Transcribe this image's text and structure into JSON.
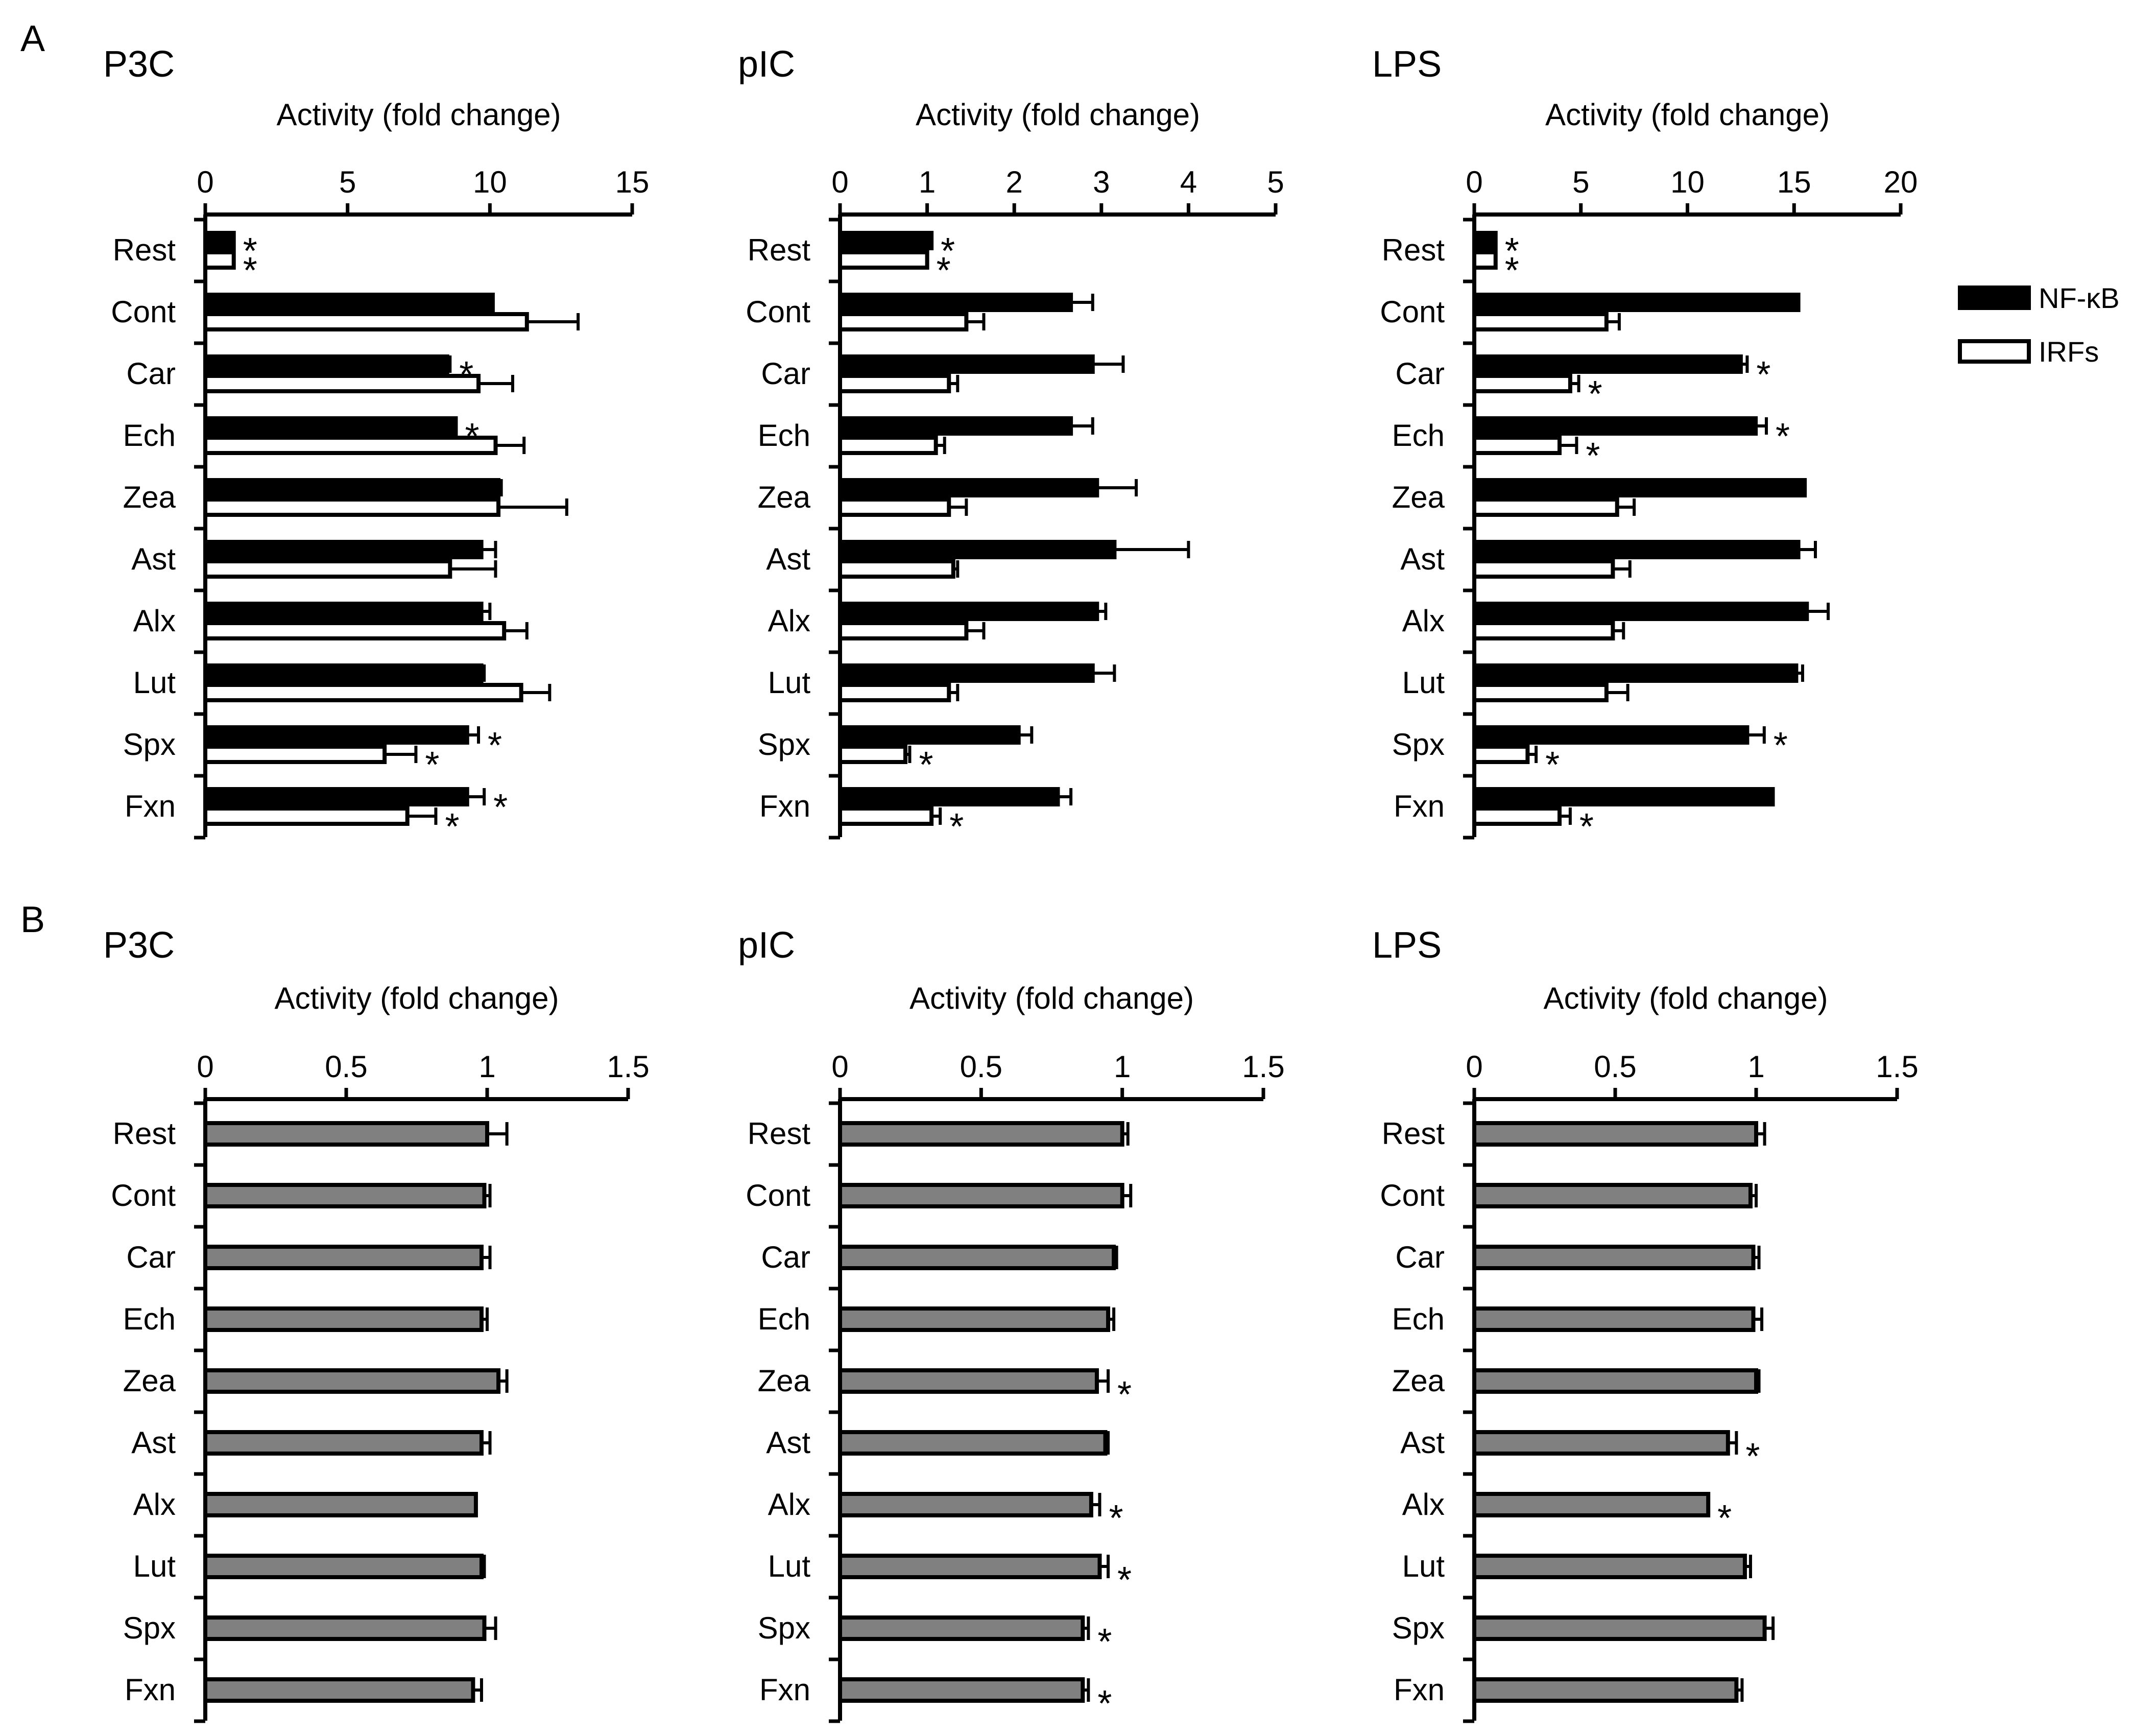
{
  "figure": {
    "panel_labels": [
      "A",
      "B"
    ]
  },
  "legend": [
    {
      "name": "NF-κB",
      "fill": "#000000"
    },
    {
      "name": "IRFs",
      "fill": "#ffffff"
    }
  ],
  "colors": {
    "nfkb": "#000000",
    "irfs": "#ffffff",
    "row_b": "#808080",
    "axis": "#000000"
  },
  "chart_data": [
    {
      "type": "bar",
      "panel": "A",
      "title": "P3C",
      "xlabel": "Activity (fold change)",
      "xlim": [
        0,
        15
      ],
      "xticks": [
        "0",
        "5",
        "10",
        "15"
      ],
      "orientation": "horizontal",
      "categories": [
        "Rest",
        "Cont",
        "Car",
        "Ech",
        "Zea",
        "Ast",
        "Alx",
        "Lut",
        "Spx",
        "Fxn"
      ],
      "series": [
        {
          "name": "NF-κB",
          "values": [
            1.0,
            10.1,
            8.5,
            8.8,
            10.3,
            9.7,
            9.7,
            9.7,
            9.2,
            9.2
          ],
          "errors": [
            0,
            0,
            0.1,
            0,
            0.1,
            0.5,
            0.3,
            0.1,
            0.4,
            0.6
          ],
          "sig": [
            true,
            false,
            true,
            true,
            false,
            false,
            false,
            false,
            true,
            true
          ]
        },
        {
          "name": "IRFs",
          "values": [
            1.0,
            11.3,
            9.6,
            10.2,
            10.3,
            8.6,
            10.5,
            11.1,
            6.3,
            7.1
          ],
          "errors": [
            0,
            1.8,
            1.2,
            1.0,
            2.4,
            1.6,
            0.8,
            1.0,
            1.1,
            1.0
          ],
          "sig": [
            true,
            false,
            false,
            false,
            false,
            false,
            false,
            false,
            true,
            true
          ]
        }
      ]
    },
    {
      "type": "bar",
      "panel": "A",
      "title": "pIC",
      "xlabel": "Activity (fold change)",
      "xlim": [
        0,
        5
      ],
      "xticks": [
        "0",
        "1",
        "2",
        "3",
        "4",
        "5"
      ],
      "orientation": "horizontal",
      "categories": [
        "Rest",
        "Cont",
        "Car",
        "Ech",
        "Zea",
        "Ast",
        "Alx",
        "Lut",
        "Spx",
        "Fxn"
      ],
      "series": [
        {
          "name": "NF-κB",
          "values": [
            1.05,
            2.65,
            2.9,
            2.65,
            2.95,
            3.15,
            2.95,
            2.9,
            2.05,
            2.5
          ],
          "errors": [
            0,
            0.25,
            0.35,
            0.25,
            0.45,
            0.85,
            0.1,
            0.25,
            0.15,
            0.15
          ],
          "sig": [
            true,
            false,
            false,
            false,
            false,
            false,
            false,
            false,
            false,
            false
          ]
        },
        {
          "name": "IRFs",
          "values": [
            1.0,
            1.45,
            1.25,
            1.1,
            1.25,
            1.3,
            1.45,
            1.25,
            0.75,
            1.05
          ],
          "errors": [
            0,
            0.2,
            0.1,
            0.1,
            0.2,
            0.05,
            0.2,
            0.1,
            0.05,
            0.1
          ],
          "sig": [
            true,
            false,
            false,
            false,
            false,
            false,
            false,
            false,
            true,
            true
          ]
        }
      ]
    },
    {
      "type": "bar",
      "panel": "A",
      "title": "LPS",
      "xlabel": "Activity (fold change)",
      "xlim": [
        0,
        20
      ],
      "xticks": [
        "0",
        "5",
        "10",
        "15",
        "20"
      ],
      "orientation": "horizontal",
      "categories": [
        "Rest",
        "Cont",
        "Car",
        "Ech",
        "Zea",
        "Ast",
        "Alx",
        "Lut",
        "Spx",
        "Fxn"
      ],
      "series": [
        {
          "name": "NF-κB",
          "values": [
            1.0,
            15.2,
            12.5,
            13.2,
            15.5,
            15.2,
            15.6,
            15.1,
            12.8,
            14.0
          ],
          "errors": [
            0,
            0,
            0.3,
            0.5,
            0,
            0.8,
            1.0,
            0.3,
            0.8,
            0
          ],
          "sig": [
            true,
            false,
            true,
            true,
            false,
            false,
            false,
            false,
            true,
            false
          ]
        },
        {
          "name": "IRFs",
          "values": [
            1.0,
            6.2,
            4.5,
            4.0,
            6.7,
            6.5,
            6.5,
            6.2,
            2.5,
            4.0
          ],
          "errors": [
            0,
            0.6,
            0.4,
            0.8,
            0.8,
            0.8,
            0.5,
            1.0,
            0.4,
            0.5
          ],
          "sig": [
            true,
            false,
            true,
            true,
            false,
            false,
            false,
            false,
            true,
            true
          ]
        }
      ]
    },
    {
      "type": "bar",
      "panel": "B",
      "title": "P3C",
      "xlabel": "Activity (fold change)",
      "xlim": [
        0,
        1.5
      ],
      "xticks": [
        "0",
        "0.5",
        "1",
        "1.5"
      ],
      "orientation": "horizontal",
      "categories": [
        "Rest",
        "Cont",
        "Car",
        "Ech",
        "Zea",
        "Ast",
        "Alx",
        "Lut",
        "Spx",
        "Fxn"
      ],
      "series": [
        {
          "name": "",
          "values": [
            1.0,
            0.99,
            0.98,
            0.98,
            1.04,
            0.98,
            0.96,
            0.98,
            0.99,
            0.95
          ],
          "errors": [
            0.07,
            0.02,
            0.03,
            0.02,
            0.03,
            0.03,
            0,
            0.01,
            0.04,
            0.03
          ],
          "sig": [
            false,
            false,
            false,
            false,
            false,
            false,
            false,
            false,
            false,
            false
          ]
        }
      ]
    },
    {
      "type": "bar",
      "panel": "B",
      "title": "pIC",
      "xlabel": "Activity (fold change)",
      "xlim": [
        0,
        1.5
      ],
      "xticks": [
        "0",
        "0.5",
        "1",
        "1.5"
      ],
      "orientation": "horizontal",
      "categories": [
        "Rest",
        "Cont",
        "Car",
        "Ech",
        "Zea",
        "Ast",
        "Alx",
        "Lut",
        "Spx",
        "Fxn"
      ],
      "series": [
        {
          "name": "",
          "values": [
            1.0,
            1.0,
            0.97,
            0.95,
            0.91,
            0.94,
            0.89,
            0.92,
            0.86,
            0.86
          ],
          "errors": [
            0.02,
            0.03,
            0.01,
            0.02,
            0.04,
            0.01,
            0.03,
            0.03,
            0.02,
            0.02
          ],
          "sig": [
            false,
            false,
            false,
            false,
            true,
            false,
            true,
            true,
            true,
            true
          ]
        }
      ]
    },
    {
      "type": "bar",
      "panel": "B",
      "title": "LPS",
      "xlabel": "Activity (fold change)",
      "xlim": [
        0,
        1.5
      ],
      "xticks": [
        "0",
        "0.5",
        "1",
        "1.5"
      ],
      "orientation": "horizontal",
      "categories": [
        "Rest",
        "Cont",
        "Car",
        "Ech",
        "Zea",
        "Ast",
        "Alx",
        "Lut",
        "Spx",
        "Fxn"
      ],
      "series": [
        {
          "name": "",
          "values": [
            1.0,
            0.98,
            0.99,
            0.99,
            1.0,
            0.9,
            0.83,
            0.96,
            1.03,
            0.93
          ],
          "errors": [
            0.03,
            0.02,
            0.02,
            0.03,
            0.01,
            0.03,
            0,
            0.02,
            0.03,
            0.02
          ],
          "sig": [
            false,
            false,
            false,
            false,
            false,
            true,
            true,
            false,
            false,
            false
          ]
        }
      ]
    }
  ]
}
